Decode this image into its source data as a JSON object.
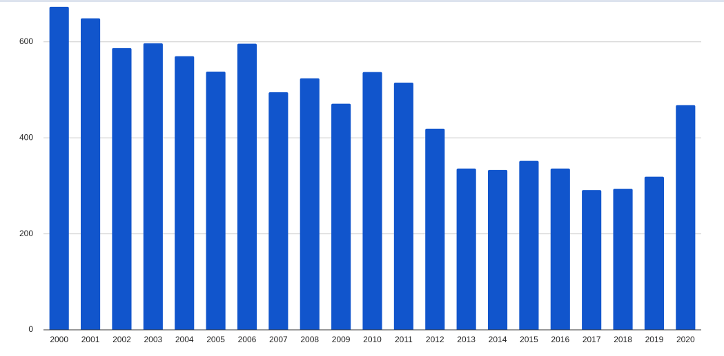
{
  "chart_data": {
    "type": "bar",
    "categories": [
      "2000",
      "2001",
      "2002",
      "2003",
      "2004",
      "2005",
      "2006",
      "2007",
      "2008",
      "2009",
      "2010",
      "2011",
      "2012",
      "2013",
      "2014",
      "2015",
      "2016",
      "2017",
      "2018",
      "2019",
      "2020"
    ],
    "values": [
      673,
      649,
      587,
      597,
      570,
      538,
      596,
      495,
      524,
      471,
      537,
      515,
      419,
      336,
      333,
      352,
      336,
      291,
      294,
      319,
      468
    ],
    "color": "#1155cc",
    "ylim": [
      0,
      680
    ],
    "yticks": [
      0,
      200,
      400,
      600
    ],
    "grid": true
  }
}
